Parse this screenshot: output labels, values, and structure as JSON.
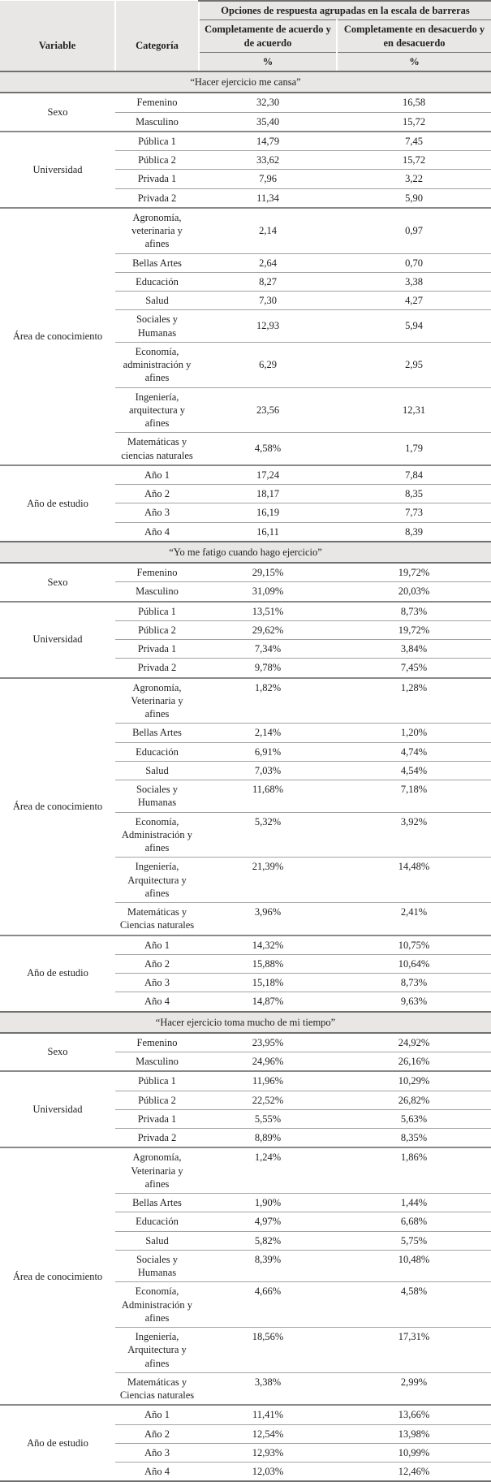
{
  "table": {
    "top_header": "Opciones de respuesta agrupadas en la escala de barreras",
    "col_variable": "Variable",
    "col_categoria": "Categoría",
    "col_agree": "Completamente de acuerdo y de acuerdo",
    "col_disagree": "Completamente en desacuerdo y en desacuerdo",
    "percent_label": "%",
    "sections": [
      {
        "title": "“Hacer ejercicio me cansa”",
        "groups": [
          {
            "variable": "Sexo",
            "rows": [
              {
                "category": "Femenino",
                "agree": "32,30",
                "disagree": "16,58"
              },
              {
                "category": "Masculino",
                "agree": "35,40",
                "disagree": "15,72"
              }
            ]
          },
          {
            "variable": "Universidad",
            "rows": [
              {
                "category": "Pública 1",
                "agree": "14,79",
                "disagree": "7,45"
              },
              {
                "category": "Pública 2",
                "agree": "33,62",
                "disagree": "15,72"
              },
              {
                "category": "Privada 1",
                "agree": "7,96",
                "disagree": "3,22"
              },
              {
                "category": "Privada 2",
                "agree": "11,34",
                "disagree": "5,90"
              }
            ]
          },
          {
            "variable": "Área de conocimiento",
            "rows": [
              {
                "category": "Agronomía,\nveterinaria y afines",
                "agree": "2,14",
                "disagree": "0,97"
              },
              {
                "category": "Bellas Artes",
                "agree": "2,64",
                "disagree": "0,70"
              },
              {
                "category": "Educación",
                "agree": "8,27",
                "disagree": "3,38"
              },
              {
                "category": "Salud",
                "agree": "7,30",
                "disagree": "4,27"
              },
              {
                "category": "Sociales y\nHumanas",
                "agree": "12,93",
                "disagree": "5,94"
              },
              {
                "category": "Economía,\nadministración y\nafines",
                "agree": "6,29",
                "disagree": "2,95"
              },
              {
                "category": "Ingeniería,\narquitectura y\nafines",
                "agree": "23,56",
                "disagree": "12,31"
              },
              {
                "category": "Matemáticas y\nciencias naturales",
                "agree": "4,58%",
                "disagree": "1,79"
              }
            ]
          },
          {
            "variable": "Año de estudio",
            "rows": [
              {
                "category": "Año 1",
                "agree": "17,24",
                "disagree": "7,84"
              },
              {
                "category": "Año 2",
                "agree": "18,17",
                "disagree": "8,35"
              },
              {
                "category": "Año 3",
                "agree": "16,19",
                "disagree": "7,73"
              },
              {
                "category": "Año 4",
                "agree": "16,11",
                "disagree": "8,39"
              }
            ]
          }
        ]
      },
      {
        "title": "“Yo me fatigo cuando hago ejercicio”",
        "groups": [
          {
            "variable": "Sexo",
            "rows": [
              {
                "category": "Femenino",
                "agree": "29,15%",
                "disagree": "19,72%"
              },
              {
                "category": "Masculino",
                "agree": "31,09%",
                "disagree": "20,03%"
              }
            ]
          },
          {
            "variable": "Universidad",
            "rows": [
              {
                "category": "Pública 1",
                "agree": "13,51%",
                "disagree": "8,73%"
              },
              {
                "category": "Pública 2",
                "agree": "29,62%",
                "disagree": "19,72%"
              },
              {
                "category": "Privada 1",
                "agree": "7,34%",
                "disagree": "3,84%"
              },
              {
                "category": "Privada 2",
                "agree": "9,78%",
                "disagree": "7,45%"
              }
            ]
          },
          {
            "variable": "Área de conocimiento",
            "rows": [
              {
                "category": "Agronomía,\nVeterinaria y afines",
                "agree": "1,82%",
                "disagree": "1,28%"
              },
              {
                "category": "Bellas Artes",
                "agree": "2,14%",
                "disagree": "1,20%"
              },
              {
                "category": "Educación",
                "agree": "6,91%",
                "disagree": "4,74%"
              },
              {
                "category": "Salud",
                "agree": "7,03%",
                "disagree": "4,54%"
              },
              {
                "category": "Sociales y\nHumanas",
                "agree": "11,68%",
                "disagree": "7,18%"
              },
              {
                "category": "Economía,\nAdministración y\nafines",
                "agree": "5,32%",
                "disagree": "3,92%"
              },
              {
                "category": "Ingeniería,\nArquitectura y\nafines",
                "agree": "21,39%",
                "disagree": "14,48%"
              },
              {
                "category": "Matemáticas y\nCiencias naturales",
                "agree": "3,96%",
                "disagree": "2,41%"
              }
            ]
          },
          {
            "variable": "Año de estudio",
            "rows": [
              {
                "category": "Año 1",
                "agree": "14,32%",
                "disagree": "10,75%"
              },
              {
                "category": "Año 2",
                "agree": "15,88%",
                "disagree": "10,64%"
              },
              {
                "category": "Año 3",
                "agree": "15,18%",
                "disagree": "8,73%"
              },
              {
                "category": "Año 4",
                "agree": "14,87%",
                "disagree": "9,63%"
              }
            ]
          }
        ]
      },
      {
        "title": "“Hacer ejercicio toma mucho de mi tiempo”",
        "groups": [
          {
            "variable": "Sexo",
            "rows": [
              {
                "category": "Femenino",
                "agree": "23,95%",
                "disagree": "24,92%"
              },
              {
                "category": "Masculino",
                "agree": "24,96%",
                "disagree": "26,16%"
              }
            ]
          },
          {
            "variable": "Universidad",
            "rows": [
              {
                "category": "Pública 1",
                "agree": "11,96%",
                "disagree": "10,29%"
              },
              {
                "category": "Pública 2",
                "agree": "22,52%",
                "disagree": "26,82%"
              },
              {
                "category": "Privada 1",
                "agree": "5,55%",
                "disagree": "5,63%"
              },
              {
                "category": "Privada 2",
                "agree": "8,89%",
                "disagree": "8,35%"
              }
            ]
          },
          {
            "variable": "Área de conocimiento",
            "rows": [
              {
                "category": "Agronomía,\nVeterinaria y afines",
                "agree": "1,24%",
                "disagree": "1,86%"
              },
              {
                "category": "Bellas Artes",
                "agree": "1,90%",
                "disagree": "1,44%"
              },
              {
                "category": "Educación",
                "agree": "4,97%",
                "disagree": "6,68%"
              },
              {
                "category": "Salud",
                "agree": "5,82%",
                "disagree": "5,75%"
              },
              {
                "category": "Sociales y\nHumanas",
                "agree": "8,39%",
                "disagree": "10,48%"
              },
              {
                "category": "Economía,\nAdministración y\nafines",
                "agree": "4,66%",
                "disagree": "4,58%"
              },
              {
                "category": "Ingeniería,\nArquitectura y\nafines",
                "agree": "18,56%",
                "disagree": "17,31%"
              },
              {
                "category": "Matemáticas y\nCiencias naturales",
                "agree": "3,38%",
                "disagree": "2,99%"
              }
            ]
          },
          {
            "variable": "Año de estudio",
            "rows": [
              {
                "category": "Año 1",
                "agree": "11,41%",
                "disagree": "13,66%"
              },
              {
                "category": "Año 2",
                "agree": "12,54%",
                "disagree": "13,98%"
              },
              {
                "category": "Año 3",
                "agree": "12,93%",
                "disagree": "10,99%"
              },
              {
                "category": "Año 4",
                "agree": "12,03%",
                "disagree": "12,46%"
              }
            ]
          }
        ]
      }
    ]
  },
  "colors": {
    "header_bg": "#e8e7e5",
    "band_bg": "#e8e7e5",
    "border_strong": "#707070",
    "border_group": "#8a8a8a",
    "border_row": "#a3a3a3",
    "text": "#1f1f1f"
  }
}
